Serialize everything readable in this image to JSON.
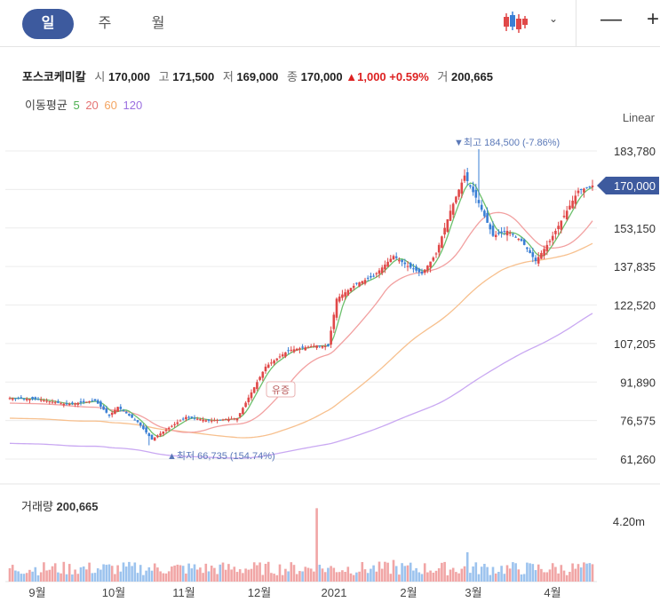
{
  "tabs": [
    {
      "label": "일"
    },
    {
      "label": "주"
    },
    {
      "label": "월"
    }
  ],
  "toolbar": {
    "chart_style_icon": "candlestick-icon",
    "dropdown_icon": "chevron-down-icon",
    "zoom_out": "—",
    "zoom_in": "+"
  },
  "stock": {
    "name": "포스코케미칼",
    "open_label": "시",
    "open": "170,000",
    "high_label": "고",
    "high": "171,500",
    "low_label": "저",
    "low": "169,000",
    "close_label": "종",
    "close": "170,000",
    "change": "▲1,000",
    "change_pct": "+0.59%",
    "volume_label": "거",
    "volume": "200,665"
  },
  "ma_legend": {
    "label": "이동평균",
    "items": [
      {
        "p": "5",
        "color": "#4caf50"
      },
      {
        "p": "20",
        "color": "#e57373"
      },
      {
        "p": "60",
        "color": "#f4a460"
      },
      {
        "p": "120",
        "color": "#9b6fe0"
      }
    ]
  },
  "scale_mode": "Linear",
  "volume_panel": {
    "label": "거래량",
    "value": "200,665",
    "axis_tick": "4.20m"
  },
  "colors": {
    "up": "#e04848",
    "down": "#3a7fd5",
    "price_tag": "#3d5a9e"
  },
  "chart_data": {
    "type": "candlestick",
    "y_ticks": [
      183780,
      168465,
      153150,
      137835,
      122520,
      107205,
      91890,
      76575,
      61260
    ],
    "y_tick_labels": [
      "183,780",
      "",
      "153,150",
      "137,835",
      "122,520",
      "107,205",
      "91,890",
      "76,575",
      "61,260"
    ],
    "ylim": [
      61260,
      183780
    ],
    "x_labels": [
      "9월",
      "10월",
      "11월",
      "12월",
      "2021",
      "2월",
      "3월",
      "4월"
    ],
    "current_price": 170000,
    "current_price_label": "170,000",
    "high_annotation": {
      "text": "최고",
      "value": "184,500",
      "pct": "(-7.86%)",
      "price": 184500
    },
    "low_annotation": {
      "text": "최저",
      "value": "66,735",
      "pct": "(154.74%)",
      "price": 66735
    },
    "event_annotation": "유증",
    "close_anchors": [
      [
        0,
        85500
      ],
      [
        10,
        85000
      ],
      [
        20,
        83000
      ],
      [
        30,
        84500
      ],
      [
        35,
        78500
      ],
      [
        38,
        82000
      ],
      [
        45,
        76000
      ],
      [
        50,
        69000
      ],
      [
        55,
        73000
      ],
      [
        62,
        78000
      ],
      [
        70,
        76500
      ],
      [
        80,
        77500
      ],
      [
        90,
        98000
      ],
      [
        98,
        104500
      ],
      [
        108,
        106500
      ],
      [
        112,
        106000
      ],
      [
        115,
        125000
      ],
      [
        122,
        131000
      ],
      [
        128,
        134000
      ],
      [
        135,
        142000
      ],
      [
        140,
        138000
      ],
      [
        145,
        135000
      ],
      [
        150,
        143000
      ],
      [
        155,
        160000
      ],
      [
        160,
        174000
      ],
      [
        165,
        163000
      ],
      [
        170,
        150000
      ],
      [
        175,
        152000
      ],
      [
        180,
        148000
      ],
      [
        185,
        140000
      ],
      [
        190,
        148000
      ],
      [
        195,
        158000
      ],
      [
        200,
        168000
      ],
      [
        205,
        170000
      ]
    ],
    "volume_max": 4200000
  }
}
